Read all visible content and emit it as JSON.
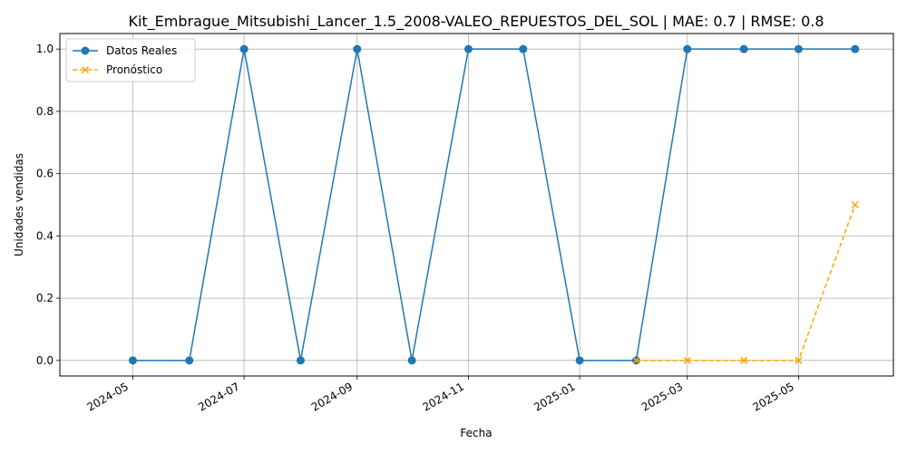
{
  "chart_data": {
    "type": "line",
    "title": "Kit_Embrague_Mitsubishi_Lancer_1.5_2008-VALEO_REPUESTOS_DEL_SOL | MAE: 0.7 | RMSE: 0.8",
    "xlabel": "Fecha",
    "ylabel": "Unidades vendidas",
    "xlim": [
      "2024-03-22",
      "2025-06-22"
    ],
    "ylim": [
      -0.05,
      1.05
    ],
    "x_ticks": [
      "2024-05",
      "2024-07",
      "2024-09",
      "2024-11",
      "2025-01",
      "2025-03",
      "2025-05"
    ],
    "y_ticks": [
      "0.0",
      "0.2",
      "0.4",
      "0.6",
      "0.8",
      "1.0"
    ],
    "grid": true,
    "legend_position": "top-left",
    "series": [
      {
        "name": "Datos Reales",
        "color": "#1f77b4",
        "marker": "circle",
        "line_style": "solid",
        "x": [
          "2024-05-01",
          "2024-06-01",
          "2024-07-01",
          "2024-08-01",
          "2024-09-01",
          "2024-10-01",
          "2024-11-01",
          "2024-12-01",
          "2025-01-01",
          "2025-02-01",
          "2025-03-01",
          "2025-04-01",
          "2025-05-01",
          "2025-06-01"
        ],
        "values": [
          0,
          0,
          1,
          0,
          1,
          0,
          1,
          1,
          0,
          0,
          1,
          1,
          1,
          1
        ]
      },
      {
        "name": "Pronóstico",
        "color": "#ffa500",
        "marker": "x",
        "line_style": "dashed",
        "x": [
          "2025-02-01",
          "2025-03-01",
          "2025-04-01",
          "2025-05-01",
          "2025-06-01"
        ],
        "values": [
          0,
          0,
          0,
          0,
          0.5
        ]
      }
    ]
  }
}
